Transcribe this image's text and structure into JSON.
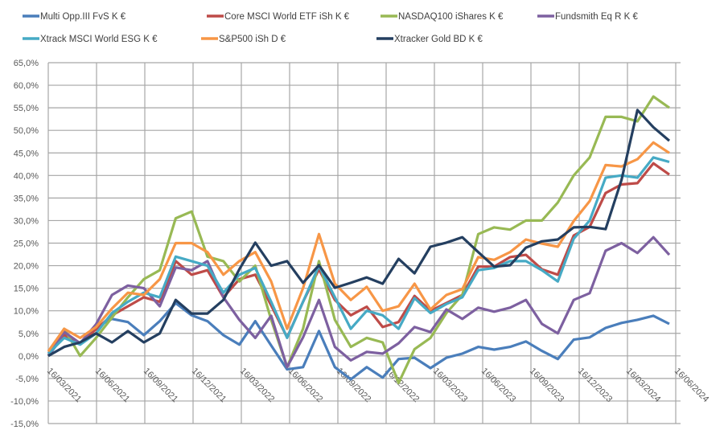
{
  "chart_data": {
    "type": "line",
    "title": "",
    "xlabel": "",
    "ylabel": "",
    "ylim": [
      -15,
      65
    ],
    "ytick_step": 5,
    "ytick_format": "percent-1-decimal-comma",
    "grid": true,
    "legend_position": "top",
    "xtick_labels": [
      "16/03/2021",
      "16/06/2021",
      "16/09/2021",
      "16/12/2021",
      "16/03/2022",
      "16/06/2022",
      "16/09/2022",
      "16/12/2022",
      "16/03/2023",
      "16/06/2023",
      "16/09/2023",
      "16/12/2023",
      "16/03/2024",
      "16/06/2024"
    ],
    "x": [
      "2021-03",
      "2021-04",
      "2021-05",
      "2021-06",
      "2021-07",
      "2021-08",
      "2021-09",
      "2021-10",
      "2021-11",
      "2021-12",
      "2022-01",
      "2022-02",
      "2022-03",
      "2022-04",
      "2022-05",
      "2022-06",
      "2022-07",
      "2022-08",
      "2022-09",
      "2022-10",
      "2022-11",
      "2022-12",
      "2023-01",
      "2023-02",
      "2023-03",
      "2023-04",
      "2023-05",
      "2023-06",
      "2023-07",
      "2023-08",
      "2023-09",
      "2023-10",
      "2023-11",
      "2023-12",
      "2024-01",
      "2024-02",
      "2024-03",
      "2024-04",
      "2024-05",
      "2024-06"
    ],
    "series": [
      {
        "name": "Multi Opp.III FvS K €",
        "color": "#4a7ebb",
        "values": [
          0,
          4.6,
          2.7,
          6.4,
          8.2,
          7.5,
          4.6,
          7.7,
          11.7,
          9,
          7.7,
          4.6,
          2.5,
          7.7,
          2.3,
          -3,
          -2.5,
          5.5,
          -2.5,
          -5.2,
          -2.5,
          -4.8,
          -0.7,
          -0.4,
          -2.7,
          -0.4,
          0.5,
          2,
          1.4,
          2,
          3.2,
          1.1,
          -0.7,
          3.6,
          4.1,
          6.2,
          7.3,
          8,
          8.9,
          7.1
        ]
      },
      {
        "name": "Core MSCI World ETF iSh K €",
        "color": "#be4b48",
        "values": [
          0.5,
          4.6,
          2.8,
          5.9,
          9,
          11,
          13,
          12,
          21,
          18,
          19,
          13,
          17,
          18,
          11.2,
          4.1,
          12,
          19.2,
          12.4,
          9,
          10.9,
          6.4,
          7.5,
          13.3,
          10,
          11.7,
          13.5,
          19.8,
          19.8,
          21.9,
          22.4,
          19.2,
          18,
          26.7,
          28.6,
          36.1,
          38,
          38.3,
          42.7,
          40.2
        ]
      },
      {
        "name": "NASDAQ100 iShares K €",
        "color": "#98b954",
        "values": [
          0,
          6,
          0,
          4,
          8.5,
          13,
          17,
          19,
          30.5,
          32,
          22,
          21,
          16.5,
          20,
          8,
          -2.5,
          6,
          21,
          8,
          2,
          4,
          3,
          -6,
          1.5,
          4,
          9.5,
          13.5,
          27,
          28.5,
          28,
          30,
          30,
          34,
          40,
          44,
          53,
          53,
          52,
          57.5,
          55
        ]
      },
      {
        "name": "Fundsmith Eq R K €",
        "color": "#7d60a0",
        "values": [
          0,
          5.3,
          2.8,
          7,
          13.5,
          15.6,
          15,
          11,
          19.6,
          19,
          21,
          13,
          8,
          4,
          8.9,
          -2.5,
          4.1,
          12.4,
          2,
          -1,
          0.9,
          0.5,
          2.8,
          6.4,
          5.3,
          10.3,
          8.2,
          10.7,
          9.8,
          10.7,
          12.4,
          7.1,
          5,
          12.4,
          13.9,
          23.3,
          25,
          22.8,
          26.3,
          22.4
        ]
      },
      {
        "name": "Xtrack MSCI World ESG K €",
        "color": "#46aac5",
        "values": [
          0.5,
          4,
          2.5,
          5,
          9.5,
          12,
          14,
          13,
          22,
          21,
          20,
          14,
          18,
          19.5,
          12,
          4,
          12,
          20,
          13,
          6,
          10,
          9,
          6,
          12.8,
          9.5,
          11.5,
          13,
          19,
          19.5,
          21,
          21,
          19,
          16.5,
          26,
          30,
          39.5,
          40,
          39.5,
          44,
          43
        ]
      },
      {
        "name": "S&P500 iSh D €",
        "color": "#f79646",
        "values": [
          1,
          6,
          4,
          6.4,
          10.5,
          14,
          13.5,
          17,
          25,
          25,
          23,
          18,
          21,
          23,
          16.5,
          6,
          15,
          27,
          16,
          12.4,
          15.3,
          10,
          11,
          16,
          10.3,
          13.5,
          14.8,
          21.9,
          21.3,
          23,
          25.8,
          24.9,
          24.2,
          29.9,
          34.3,
          42.3,
          42,
          43.6,
          47.3,
          45
        ]
      },
      {
        "name": "Xtracker Gold BD K €",
        "color": "#243f60",
        "values": [
          0,
          2,
          3,
          5,
          3,
          5.5,
          3,
          5,
          12.4,
          9.4,
          9.4,
          12.4,
          19.2,
          25.1,
          20,
          21,
          16.2,
          20.1,
          15.1,
          16.2,
          17.4,
          16,
          21.5,
          18.3,
          24.2,
          25.1,
          26.3,
          23,
          19.8,
          20.1,
          24,
          25.4,
          25.8,
          28.5,
          28.6,
          28.1,
          39,
          54.5,
          50.7,
          47.7
        ]
      }
    ]
  }
}
